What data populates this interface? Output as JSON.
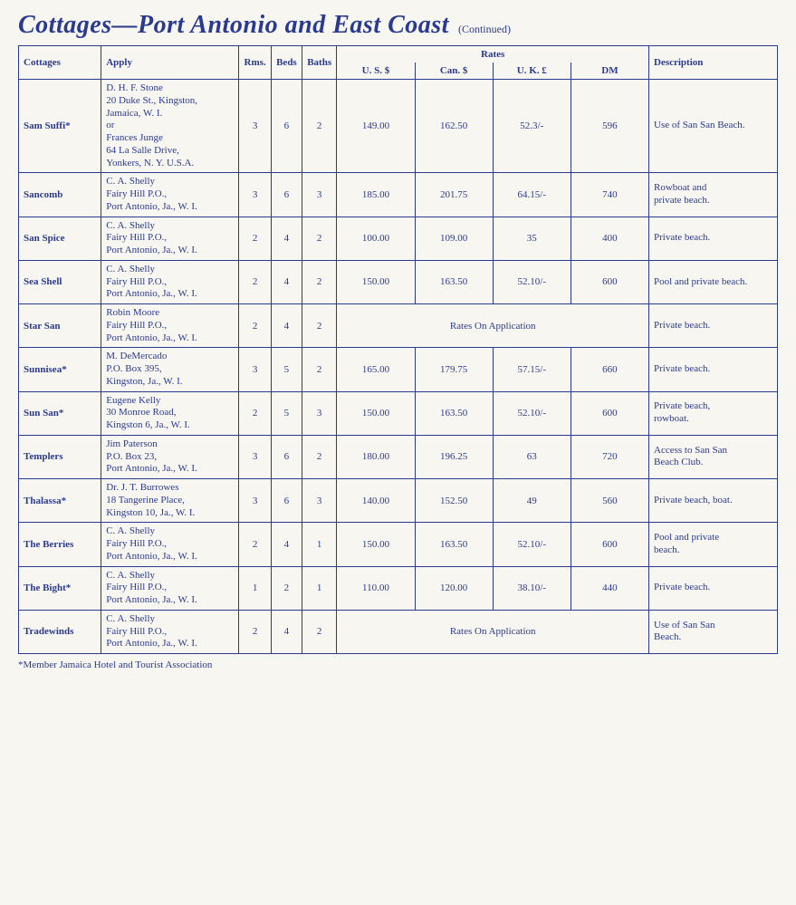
{
  "title": "Cottages—Port Antonio and East Coast",
  "continued": "(Continued)",
  "headers": {
    "cottages": "Cottages",
    "apply": "Apply",
    "rms": "Rms.",
    "beds": "Beds",
    "baths": "Baths",
    "rates": "Rates",
    "us": "U. S. $",
    "can": "Can. $",
    "uk": "U. K. £",
    "dm": "DM",
    "description": "Description"
  },
  "rates_on_app": "Rates On Application",
  "footnote": "*Member Jamaica Hotel and Tourist Association",
  "rows": [
    {
      "cottage": "Sam Suffi*",
      "apply": "D. H. F. Stone\n20 Duke St., Kingston,\nJamaica, W. I.\nor\nFrances Junge\n64 La Salle Drive,\nYonkers, N. Y. U.S.A.",
      "rms": "3",
      "beds": "6",
      "baths": "2",
      "us": "149.00",
      "can": "162.50",
      "uk": "52.3/-",
      "dm": "596",
      "desc": "Use of San San Beach."
    },
    {
      "cottage": "Sancomb",
      "apply": "C. A. Shelly\nFairy Hill P.O.,\nPort Antonio, Ja., W. I.",
      "rms": "3",
      "beds": "6",
      "baths": "3",
      "us": "185.00",
      "can": "201.75",
      "uk": "64.15/-",
      "dm": "740",
      "desc": "Rowboat and\nprivate beach."
    },
    {
      "cottage": "San Spice",
      "apply": "C. A. Shelly\nFairy Hill P.O.,\nPort Antonio, Ja., W. I.",
      "rms": "2",
      "beds": "4",
      "baths": "2",
      "us": "100.00",
      "can": "109.00",
      "uk": "35",
      "dm": "400",
      "desc": "Private beach."
    },
    {
      "cottage": "Sea Shell",
      "apply": "C. A. Shelly\nFairy Hill P.O.,\nPort Antonio, Ja., W. I.",
      "rms": "2",
      "beds": "4",
      "baths": "2",
      "us": "150.00",
      "can": "163.50",
      "uk": "52.10/-",
      "dm": "600",
      "desc": "Pool and private beach."
    },
    {
      "cottage": "Star San",
      "apply": "Robin Moore\nFairy Hill P.O.,\nPort Antonio, Ja., W. I.",
      "rms": "2",
      "beds": "4",
      "baths": "2",
      "rates_on_app": true,
      "desc": "Private beach."
    },
    {
      "cottage": "Sunnisea*",
      "apply": "M. DeMercado\nP.O. Box 395,\nKingston, Ja., W. I.",
      "rms": "3",
      "beds": "5",
      "baths": "2",
      "us": "165.00",
      "can": "179.75",
      "uk": "57.15/-",
      "dm": "660",
      "desc": "Private beach."
    },
    {
      "cottage": "Sun San*",
      "apply": "Eugene Kelly\n30 Monroe Road,\nKingston 6, Ja., W. I.",
      "rms": "2",
      "beds": "5",
      "baths": "3",
      "us": "150.00",
      "can": "163.50",
      "uk": "52.10/-",
      "dm": "600",
      "desc": "Private beach,\nrowboat."
    },
    {
      "cottage": "Templers",
      "apply": "Jim Paterson\nP.O. Box 23,\nPort Antonio, Ja., W. I.",
      "rms": "3",
      "beds": "6",
      "baths": "2",
      "us": "180.00",
      "can": "196.25",
      "uk": "63",
      "dm": "720",
      "desc": "Access to San San\nBeach Club."
    },
    {
      "cottage": "Thalassa*",
      "apply": "Dr. J. T. Burrowes\n18 Tangerine Place,\nKingston 10, Ja., W. I.",
      "rms": "3",
      "beds": "6",
      "baths": "3",
      "us": "140.00",
      "can": "152.50",
      "uk": "49",
      "dm": "560",
      "desc": "Private beach, boat."
    },
    {
      "cottage": "The Berries",
      "apply": "C. A. Shelly\nFairy Hill P.O.,\nPort Antonio, Ja., W. I.",
      "rms": "2",
      "beds": "4",
      "baths": "1",
      "us": "150.00",
      "can": "163.50",
      "uk": "52.10/-",
      "dm": "600",
      "desc": "Pool and private\nbeach."
    },
    {
      "cottage": "The Bight*",
      "apply": "C. A. Shelly\nFairy Hill P.O.,\nPort Antonio, Ja., W. I.",
      "rms": "1",
      "beds": "2",
      "baths": "1",
      "us": "110.00",
      "can": "120.00",
      "uk": "38.10/-",
      "dm": "440",
      "desc": "Private beach."
    },
    {
      "cottage": "Tradewinds",
      "apply": "C. A. Shelly\nFairy Hill P.O.,\nPort Antonio, Ja., W. I.",
      "rms": "2",
      "beds": "4",
      "baths": "2",
      "rates_on_app": true,
      "desc": "Use of San San\nBeach."
    }
  ]
}
